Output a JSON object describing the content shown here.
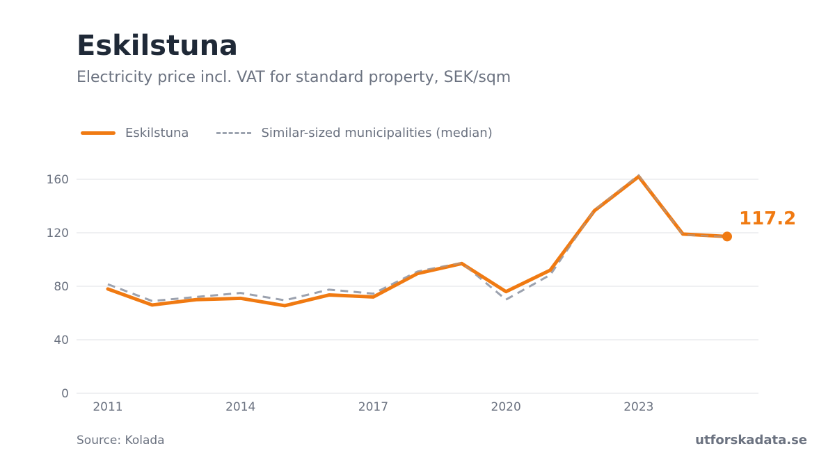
{
  "header": {
    "title": "Eskilstuna",
    "subtitle": "Electricity price incl. VAT for standard property, SEK/sqm"
  },
  "footer": {
    "source": "Source: Kolada",
    "brand": "utforskadata.se"
  },
  "colors": {
    "primary": "#f07a12",
    "comparison": "#9ca3af",
    "grid": "#e5e7eb",
    "text": "#6b7280",
    "title": "#1f2937"
  },
  "chart_data": {
    "type": "line",
    "title": "Eskilstuna",
    "subtitle": "Electricity price incl. VAT for standard property, SEK/sqm",
    "x": [
      2011,
      2012,
      2013,
      2014,
      2015,
      2016,
      2017,
      2018,
      2019,
      2020,
      2021,
      2022,
      2023,
      2024,
      2025
    ],
    "xticks": [
      "2011",
      "2014",
      "2017",
      "2020",
      "2023"
    ],
    "yticks": [
      "0",
      "40",
      "80",
      "120",
      "160"
    ],
    "ylim": [
      0,
      170
    ],
    "grid": true,
    "legend_position": "top-left",
    "series": [
      {
        "name": "Eskilstuna",
        "style": "solid",
        "values": [
          78,
          66,
          70,
          71,
          65.5,
          73.5,
          72,
          89.5,
          97,
          76,
          92,
          136.5,
          162,
          119,
          117.2
        ]
      },
      {
        "name": "Similar-sized municipalities (median)",
        "style": "dashed",
        "values": [
          81.5,
          69,
          72,
          75,
          69.5,
          77.5,
          74.5,
          91,
          97.5,
          70,
          88.5,
          137,
          163,
          118.5,
          117
        ]
      }
    ],
    "end_label": "117.2"
  }
}
